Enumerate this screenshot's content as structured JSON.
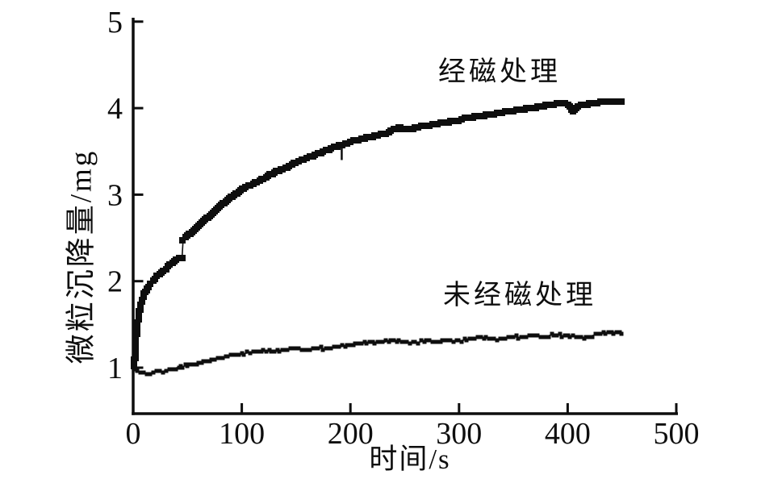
{
  "page": {
    "background": "#ffffff",
    "ink": "#0e0e0e"
  },
  "chart_data": {
    "type": "line",
    "title": "",
    "xlabel": "时间/s",
    "ylabel": "微粒沉降量/mg",
    "xlim": [
      0,
      500
    ],
    "ylim": [
      0.45,
      5.05
    ],
    "x_ticks": [
      0,
      100,
      200,
      300,
      400,
      500
    ],
    "y_ticks": [
      1,
      2,
      3,
      4,
      5
    ],
    "grid": false,
    "legend_position": "inline-annotations",
    "notes": "Treated curve has a discontinuous step at t≈45 s (2.27→2.48 mg) joined by a thin vertical line; a thin downward glitch spike occurs at t≈192 s; brief dip near t≈405 s; untreated curve dips below 1 mg near t≈10 s before rising.",
    "series": [
      {
        "name": "经磁处理",
        "marker": "square",
        "marker_size": 8,
        "jitter": false,
        "segments": [
          [
            [
              1,
              1.02
            ],
            [
              1.5,
              1.12
            ],
            [
              2,
              1.22
            ],
            [
              2.5,
              1.32
            ],
            [
              3,
              1.4
            ],
            [
              4,
              1.5
            ],
            [
              5,
              1.6
            ],
            [
              6,
              1.67
            ],
            [
              7,
              1.73
            ],
            [
              8,
              1.78
            ],
            [
              9,
              1.82
            ],
            [
              10,
              1.85
            ],
            [
              12,
              1.9
            ],
            [
              14,
              1.94
            ],
            [
              16,
              1.97
            ],
            [
              18,
              2.0
            ],
            [
              20,
              2.03
            ],
            [
              22,
              2.06
            ],
            [
              24,
              2.08
            ],
            [
              26,
              2.1
            ],
            [
              28,
              2.12
            ],
            [
              30,
              2.14
            ],
            [
              32,
              2.17
            ],
            [
              34,
              2.19
            ],
            [
              36,
              2.21
            ],
            [
              38,
              2.23
            ],
            [
              40,
              2.25
            ],
            [
              42,
              2.26
            ],
            [
              44,
              2.27
            ],
            [
              45,
              2.27
            ]
          ],
          [
            [
              46,
              2.48
            ],
            [
              48,
              2.51
            ],
            [
              51,
              2.54
            ],
            [
              54,
              2.57
            ],
            [
              57,
              2.6
            ],
            [
              60,
              2.64
            ],
            [
              63,
              2.67
            ],
            [
              66,
              2.71
            ],
            [
              69,
              2.74
            ],
            [
              72,
              2.78
            ],
            [
              75,
              2.81
            ],
            [
              78,
              2.85
            ],
            [
              81,
              2.88
            ],
            [
              84,
              2.91
            ],
            [
              87,
              2.94
            ],
            [
              90,
              2.97
            ],
            [
              93,
              3.0
            ],
            [
              96,
              3.02
            ],
            [
              99,
              3.05
            ],
            [
              102,
              3.07
            ],
            [
              106,
              3.1
            ],
            [
              110,
              3.13
            ],
            [
              114,
              3.15
            ],
            [
              118,
              3.18
            ],
            [
              122,
              3.2
            ],
            [
              126,
              3.23
            ],
            [
              130,
              3.25
            ],
            [
              134,
              3.28
            ],
            [
              138,
              3.3
            ],
            [
              142,
              3.32
            ],
            [
              146,
              3.35
            ],
            [
              150,
              3.37
            ],
            [
              155,
              3.4
            ],
            [
              160,
              3.42
            ],
            [
              165,
              3.45
            ],
            [
              170,
              3.47
            ],
            [
              175,
              3.5
            ],
            [
              180,
              3.52
            ],
            [
              185,
              3.55
            ],
            [
              190,
              3.57
            ],
            [
              195,
              3.59
            ],
            [
              200,
              3.61
            ],
            [
              205,
              3.63
            ],
            [
              210,
              3.64
            ],
            [
              215,
              3.66
            ],
            [
              220,
              3.67
            ],
            [
              225,
              3.69
            ],
            [
              230,
              3.7
            ],
            [
              235,
              3.72
            ],
            [
              240,
              3.75
            ],
            [
              244,
              3.78
            ],
            [
              248,
              3.76
            ],
            [
              252,
              3.75
            ],
            [
              256,
              3.76
            ],
            [
              260,
              3.77
            ],
            [
              265,
              3.79
            ],
            [
              270,
              3.8
            ],
            [
              275,
              3.81
            ],
            [
              280,
              3.82
            ],
            [
              285,
              3.83
            ],
            [
              290,
              3.84
            ],
            [
              295,
              3.85
            ],
            [
              300,
              3.86
            ],
            [
              305,
              3.88
            ],
            [
              310,
              3.89
            ],
            [
              315,
              3.9
            ],
            [
              320,
              3.91
            ],
            [
              325,
              3.92
            ],
            [
              330,
              3.93
            ],
            [
              335,
              3.94
            ],
            [
              340,
              3.95
            ],
            [
              345,
              3.96
            ],
            [
              350,
              3.97
            ],
            [
              355,
              3.98
            ],
            [
              360,
              3.99
            ],
            [
              365,
              4.0
            ],
            [
              370,
              4.01
            ],
            [
              375,
              4.02
            ],
            [
              380,
              4.03
            ],
            [
              385,
              4.04
            ],
            [
              390,
              4.05
            ],
            [
              394,
              4.06
            ],
            [
              398,
              4.05
            ],
            [
              402,
              4.02
            ],
            [
              405,
              3.96
            ],
            [
              408,
              4.01
            ],
            [
              412,
              4.03
            ],
            [
              416,
              4.04
            ],
            [
              420,
              4.05
            ],
            [
              425,
              4.06
            ],
            [
              430,
              4.07
            ],
            [
              435,
              4.07
            ],
            [
              440,
              4.08
            ],
            [
              445,
              4.08
            ],
            [
              450,
              4.07
            ]
          ]
        ],
        "spikes": [
          {
            "t": 192,
            "from": 3.4,
            "to": 3.58
          }
        ]
      },
      {
        "name": "未经磁处理",
        "marker": "square",
        "marker_size": 5,
        "jitter": true,
        "segments": [
          [
            [
              0,
              1.0
            ],
            [
              2,
              0.98
            ],
            [
              4,
              0.96
            ],
            [
              6,
              0.95
            ],
            [
              8,
              0.94
            ],
            [
              10,
              0.93
            ],
            [
              13,
              0.93
            ],
            [
              16,
              0.94
            ],
            [
              19,
              0.95
            ],
            [
              22,
              0.95
            ],
            [
              25,
              0.96
            ],
            [
              28,
              0.96
            ],
            [
              31,
              0.97
            ],
            [
              34,
              0.98
            ],
            [
              37,
              0.99
            ],
            [
              40,
              1.0
            ],
            [
              44,
              1.01
            ],
            [
              48,
              1.02
            ],
            [
              52,
              1.03
            ],
            [
              56,
              1.04
            ],
            [
              60,
              1.05
            ],
            [
              65,
              1.07
            ],
            [
              70,
              1.08
            ],
            [
              75,
              1.1
            ],
            [
              80,
              1.11
            ],
            [
              85,
              1.12
            ],
            [
              90,
              1.14
            ],
            [
              95,
              1.15
            ],
            [
              100,
              1.16
            ],
            [
              105,
              1.17
            ],
            [
              110,
              1.18
            ],
            [
              115,
              1.19
            ],
            [
              120,
              1.2
            ],
            [
              125,
              1.19
            ],
            [
              130,
              1.19
            ],
            [
              135,
              1.2
            ],
            [
              140,
              1.21
            ],
            [
              145,
              1.22
            ],
            [
              150,
              1.22
            ],
            [
              155,
              1.21
            ],
            [
              160,
              1.21
            ],
            [
              165,
              1.22
            ],
            [
              170,
              1.23
            ],
            [
              175,
              1.22
            ],
            [
              180,
              1.22
            ],
            [
              185,
              1.23
            ],
            [
              190,
              1.24
            ],
            [
              195,
              1.25
            ],
            [
              200,
              1.26
            ],
            [
              205,
              1.27
            ],
            [
              210,
              1.28
            ],
            [
              215,
              1.29
            ],
            [
              220,
              1.3
            ],
            [
              225,
              1.29
            ],
            [
              230,
              1.29
            ],
            [
              235,
              1.31
            ],
            [
              240,
              1.32
            ],
            [
              245,
              1.31
            ],
            [
              250,
              1.3
            ],
            [
              255,
              1.29
            ],
            [
              260,
              1.29
            ],
            [
              265,
              1.3
            ],
            [
              270,
              1.31
            ],
            [
              275,
              1.3
            ],
            [
              280,
              1.3
            ],
            [
              285,
              1.31
            ],
            [
              290,
              1.32
            ],
            [
              295,
              1.31
            ],
            [
              300,
              1.31
            ],
            [
              305,
              1.32
            ],
            [
              310,
              1.33
            ],
            [
              315,
              1.34
            ],
            [
              320,
              1.35
            ],
            [
              325,
              1.34
            ],
            [
              330,
              1.34
            ],
            [
              335,
              1.33
            ],
            [
              340,
              1.33
            ],
            [
              345,
              1.35
            ],
            [
              350,
              1.36
            ],
            [
              355,
              1.35
            ],
            [
              360,
              1.35
            ],
            [
              365,
              1.36
            ],
            [
              370,
              1.37
            ],
            [
              375,
              1.36
            ],
            [
              380,
              1.36
            ],
            [
              385,
              1.38
            ],
            [
              390,
              1.38
            ],
            [
              395,
              1.37
            ],
            [
              400,
              1.37
            ],
            [
              405,
              1.36
            ],
            [
              410,
              1.35
            ],
            [
              415,
              1.35
            ],
            [
              420,
              1.36
            ],
            [
              425,
              1.38
            ],
            [
              430,
              1.39
            ],
            [
              435,
              1.4
            ],
            [
              440,
              1.41
            ],
            [
              445,
              1.41
            ],
            [
              450,
              1.4
            ]
          ]
        ],
        "spikes": []
      }
    ]
  }
}
